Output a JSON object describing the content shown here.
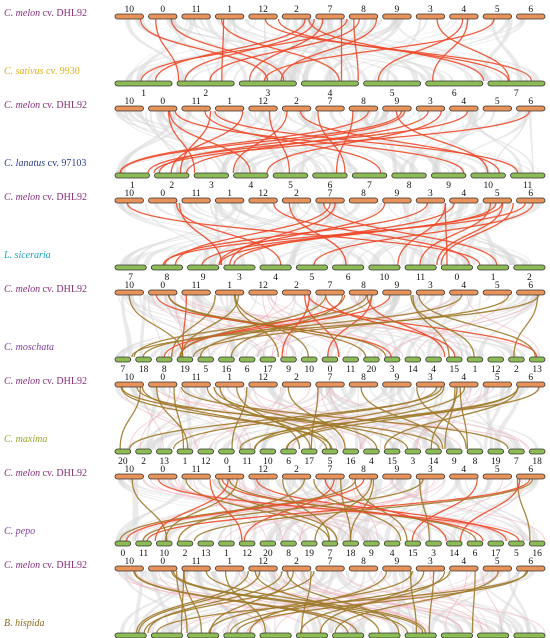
{
  "colors": {
    "melon_chr": "#e8935a",
    "target_chr": "#8dbb55",
    "chr_stroke": "#333333",
    "bg_link": "#d8d8d8",
    "link_red": "#ee4a2a",
    "link_olive": "#a07a2a",
    "link_pink": "#f2a9b5"
  },
  "panels": [
    {
      "melon": {
        "species": "C. melon",
        "suffix": "cv. DHL92",
        "color": "#8b2d7a"
      },
      "target": {
        "species": "C. sativus",
        "suffix": "cv. 9930",
        "color": "#e0b018"
      },
      "melon_chromosomes": [
        "10",
        "0",
        "11",
        "1",
        "12",
        "2",
        "7",
        "8",
        "9",
        "3",
        "4",
        "5",
        "6"
      ],
      "target_chromosomes": [
        "1",
        "2",
        "3",
        "4",
        "5",
        "6",
        "7"
      ],
      "link_color": "red"
    },
    {
      "melon": {
        "species": "C. melon",
        "suffix": "cv. DHL92",
        "color": "#8b2d7a"
      },
      "target": {
        "species": "C. lanatus",
        "suffix": "cv. 97103",
        "color": "#2b3b8c"
      },
      "melon_chromosomes": [
        "10",
        "0",
        "11",
        "1",
        "12",
        "2",
        "7",
        "8",
        "9",
        "3",
        "4",
        "5",
        "6"
      ],
      "target_chromosomes": [
        "1",
        "2",
        "3",
        "4",
        "5",
        "6",
        "7",
        "8",
        "9",
        "10",
        "11"
      ],
      "link_color": "red"
    },
    {
      "melon": {
        "species": "C. melon",
        "suffix": "cv. DHL92",
        "color": "#8b2d7a"
      },
      "target": {
        "species": "L. siceraria",
        "suffix": "",
        "color": "#1aa3c9"
      },
      "melon_chromosomes": [
        "10",
        "0",
        "11",
        "1",
        "12",
        "2",
        "7",
        "8",
        "9",
        "3",
        "4",
        "5",
        "6"
      ],
      "target_chromosomes": [
        "7",
        "8",
        "9",
        "3",
        "4",
        "5",
        "6",
        "10",
        "11",
        "0",
        "1",
        "2"
      ],
      "link_color": "red"
    },
    {
      "melon": {
        "species": "C. melon",
        "suffix": "cv. DHL92",
        "color": "#8b2d7a"
      },
      "target": {
        "species": "C. moschata",
        "suffix": "",
        "color": "#7b3fa0"
      },
      "melon_chromosomes": [
        "10",
        "0",
        "11",
        "1",
        "12",
        "2",
        "7",
        "8",
        "9",
        "3",
        "4",
        "5",
        "6"
      ],
      "target_chromosomes": [
        "7",
        "18",
        "8",
        "19",
        "5",
        "16",
        "6",
        "17",
        "9",
        "10",
        "0",
        "11",
        "20",
        "3",
        "14",
        "4",
        "15",
        "1",
        "12",
        "2",
        "13"
      ],
      "link_color": "mixed"
    },
    {
      "melon": {
        "species": "C. melon",
        "suffix": "cv. DHL92",
        "color": "#8b2d7a"
      },
      "target": {
        "species": "C. maxima",
        "suffix": "",
        "color": "#9aa52a"
      },
      "melon_chromosomes": [
        "10",
        "0",
        "11",
        "1",
        "12",
        "2",
        "7",
        "8",
        "9",
        "3",
        "4",
        "5",
        "6"
      ],
      "target_chromosomes": [
        "20",
        "2",
        "13",
        "1",
        "12",
        "0",
        "11",
        "10",
        "6",
        "17",
        "5",
        "16",
        "4",
        "15",
        "3",
        "14",
        "9",
        "8",
        "19",
        "7",
        "18"
      ],
      "link_color": "olive"
    },
    {
      "melon": {
        "species": "C. melon",
        "suffix": "cv. DHL92",
        "color": "#8b2d7a"
      },
      "target": {
        "species": "C. pepo",
        "suffix": "",
        "color": "#7b3fa0"
      },
      "melon_chromosomes": [
        "10",
        "0",
        "11",
        "1",
        "12",
        "2",
        "7",
        "8",
        "9",
        "3",
        "4",
        "5",
        "6"
      ],
      "target_chromosomes": [
        "0",
        "11",
        "10",
        "2",
        "13",
        "1",
        "12",
        "20",
        "8",
        "19",
        "7",
        "18",
        "9",
        "4",
        "15",
        "3",
        "14",
        "6",
        "17",
        "5",
        "16"
      ],
      "link_color": "mixed"
    },
    {
      "melon": {
        "species": "C. melon",
        "suffix": "cv. DHL92",
        "color": "#8b2d7a"
      },
      "target": {
        "species": "B. hispida",
        "suffix": "",
        "color": "#8a6a1a"
      },
      "melon_chromosomes": [
        "10",
        "0",
        "11",
        "1",
        "12",
        "2",
        "7",
        "8",
        "9",
        "3",
        "4",
        "5",
        "6"
      ],
      "target_chromosomes": [
        "10",
        "11",
        "12",
        "9",
        "7",
        "8",
        "5",
        "6",
        "3",
        "4",
        "1",
        "2"
      ],
      "link_color": "olive"
    }
  ]
}
